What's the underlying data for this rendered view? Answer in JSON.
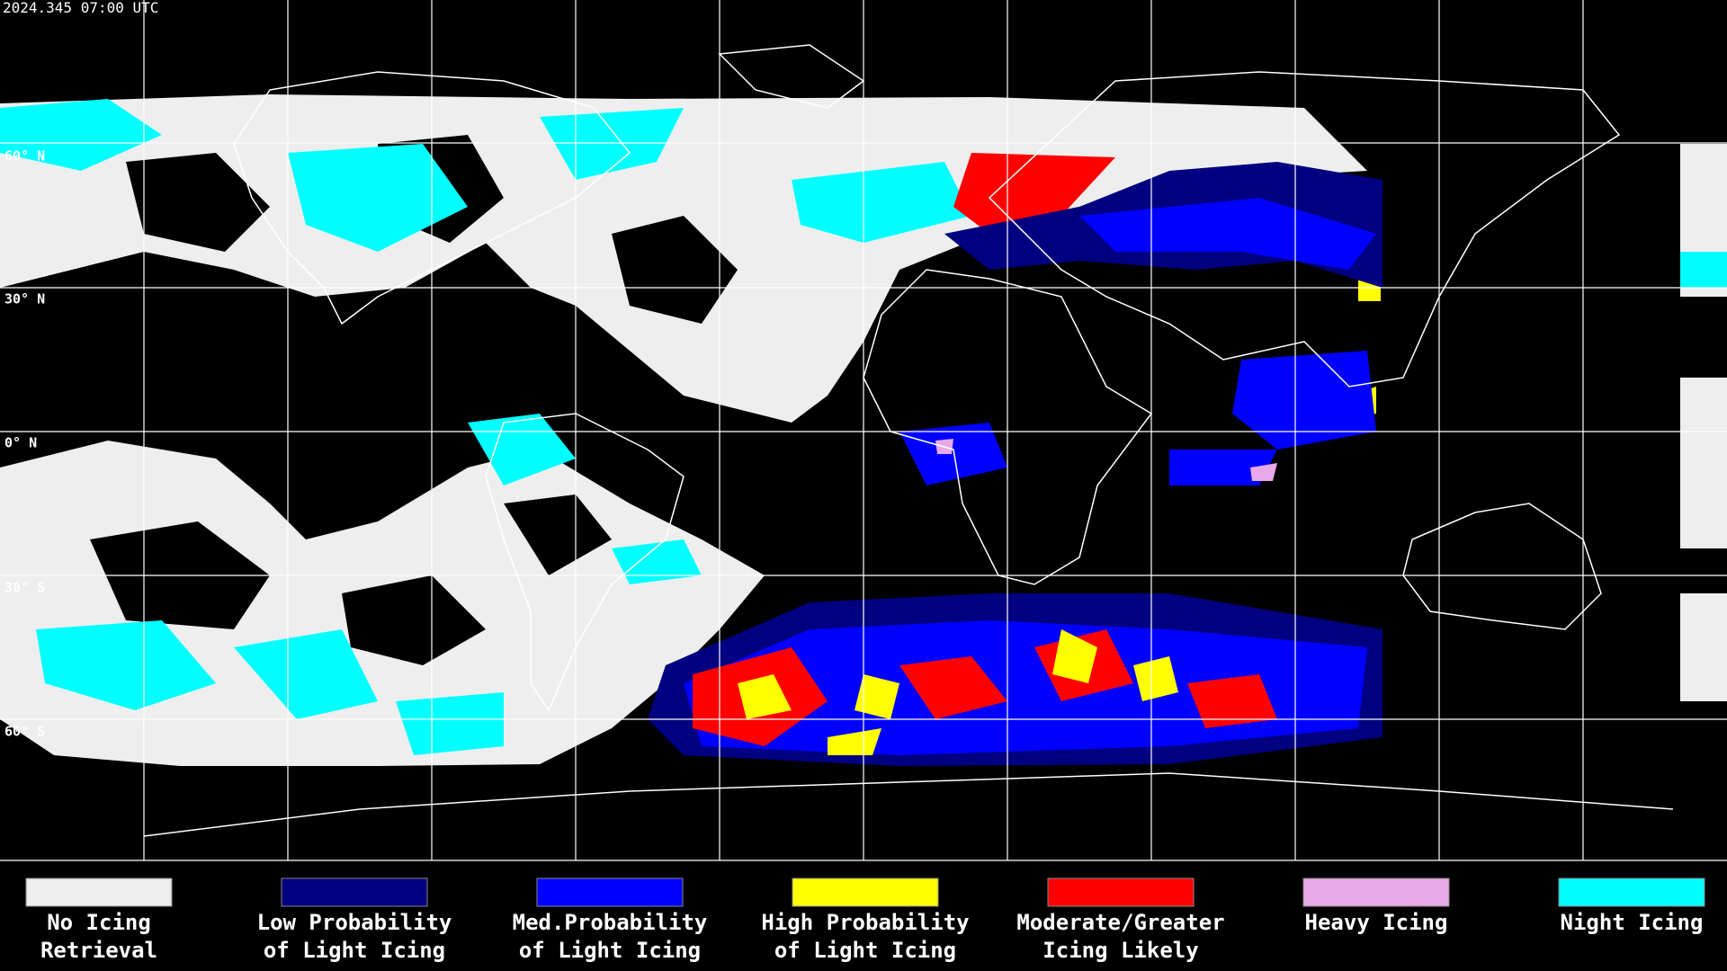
{
  "header": {
    "timestamp": "2024.345 07:00 UTC"
  },
  "map": {
    "lat_labels": [
      "60° N",
      "30° N",
      "0° N",
      "30° S",
      "60° S"
    ]
  },
  "legend": {
    "items": [
      {
        "label_lines": [
          "No Icing",
          "Retrieval"
        ],
        "color": "#eeeeee"
      },
      {
        "label_lines": [
          "Low Probability",
          "of Light Icing"
        ],
        "color": "#000080"
      },
      {
        "label_lines": [
          "Med.Probability",
          "of Light Icing"
        ],
        "color": "#0000ff"
      },
      {
        "label_lines": [
          "High Probability",
          "of Light Icing"
        ],
        "color": "#ffff00"
      },
      {
        "label_lines": [
          "Moderate/Greater",
          "Icing Likely"
        ],
        "color": "#ff0000"
      },
      {
        "label_lines": [
          "Heavy Icing"
        ],
        "color": "#e8a8e8"
      },
      {
        "label_lines": [
          "Night Icing"
        ],
        "color": "#00ffff"
      }
    ]
  }
}
